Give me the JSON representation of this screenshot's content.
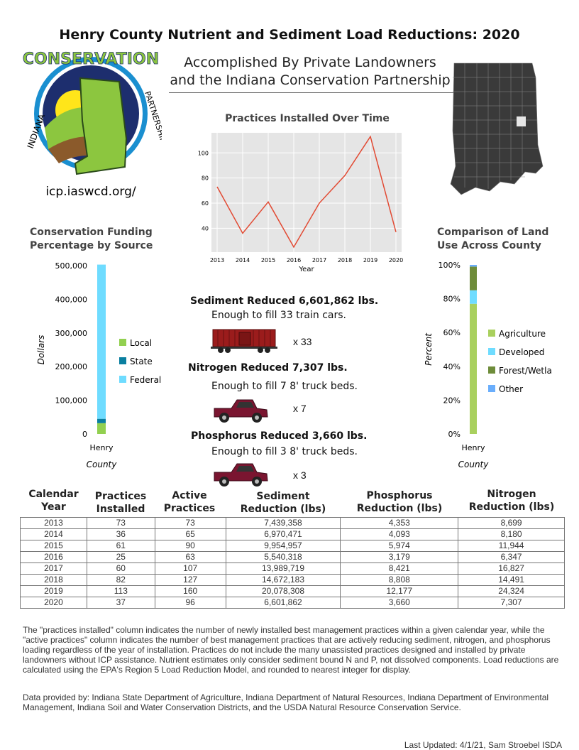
{
  "title": "Henry County Nutrient and Sediment Load Reductions: 2020",
  "subtitle_line1": "Accomplished By Private Landowners",
  "subtitle_line2": "and the Indiana Conservation Partnership",
  "logo": {
    "text_top": "CONSERVATION",
    "text_left": "INDIANA",
    "text_right": "PARTNERSHIP",
    "url": "icp.iaswcd.org/"
  },
  "map": {
    "highlighted_county": "Henry",
    "fill": "#3a3a3a",
    "highlight": "#e6e6e6"
  },
  "chart_data": [
    {
      "type": "line",
      "title": "Practices Installed Over Time",
      "xlabel": "Year",
      "ylabel": "",
      "x": [
        2013,
        2014,
        2015,
        2016,
        2017,
        2018,
        2019,
        2020
      ],
      "values": [
        73,
        36,
        61,
        25,
        60,
        82,
        113,
        37
      ],
      "yticks": [
        40,
        60,
        80,
        100
      ],
      "ylim": [
        21,
        116
      ],
      "grid": true,
      "color": "#e24a33",
      "background": "#e5e5e5"
    },
    {
      "type": "bar",
      "stacked": true,
      "title": "Conservation Funding Percentage by Source",
      "xlabel": "County",
      "ylabel": "Dollars",
      "categories": [
        "Henry"
      ],
      "yticks": [
        "0",
        "100,000",
        "200,000",
        "300,000",
        "400,000",
        "500,000"
      ],
      "ylim": [
        0,
        500000
      ],
      "legend": "right",
      "series": [
        {
          "name": "Local",
          "values": [
            32000
          ],
          "color": "#92d050"
        },
        {
          "name": "State",
          "values": [
            13000
          ],
          "color": "#0a7fa0"
        },
        {
          "name": "Federal",
          "values": [
            458000
          ],
          "color": "#6fdcff"
        }
      ]
    },
    {
      "type": "bar",
      "stacked": true,
      "title": "Comparison of Land Use Across County",
      "xlabel": "County",
      "ylabel": "Percent",
      "categories": [
        "Henry"
      ],
      "yticks": [
        "0%",
        "20%",
        "40%",
        "60%",
        "80%",
        "100%"
      ],
      "ylim": [
        0,
        100
      ],
      "legend": "right",
      "series": [
        {
          "name": "Agriculture",
          "values": [
            77
          ],
          "color": "#a9d05e"
        },
        {
          "name": "Developed",
          "values": [
            8
          ],
          "color": "#6fdcff"
        },
        {
          "name": "Forest/Wetla",
          "values": [
            14
          ],
          "color": "#6e8c3a"
        },
        {
          "name": "Other",
          "values": [
            1
          ],
          "color": "#6aaefc"
        }
      ]
    }
  ],
  "reductions": [
    {
      "heading": "Sediment Reduced 6,601,862 lbs.",
      "enough": "Enough to fill 33 train cars.",
      "multiplier": "x 33",
      "icon": "train-car-icon"
    },
    {
      "heading": "Nitrogen Reduced 7,307  lbs.",
      "enough": "Enough to fill 7 8' truck beds.",
      "multiplier": "x 7",
      "icon": "pickup-truck-icon"
    },
    {
      "heading": "Phosphorus Reduced 3,660  lbs.",
      "enough": "Enough to fill 3  8' truck beds.",
      "multiplier": "x 3",
      "icon": "pickup-truck-icon"
    }
  ],
  "table": {
    "headers": [
      [
        "Calendar",
        "Year"
      ],
      [
        "Practices",
        "Installed"
      ],
      [
        "Active",
        "Practices"
      ],
      [
        "Sediment",
        "Reduction (lbs)"
      ],
      [
        "Phosphorus",
        "Reduction (lbs)"
      ],
      [
        "Nitrogen",
        "Reduction (lbs)"
      ]
    ],
    "rows": [
      [
        "2013",
        "73",
        "73",
        "7,439,358",
        "4,353",
        "8,699"
      ],
      [
        "2014",
        "36",
        "65",
        "6,970,471",
        "4,093",
        "8,180"
      ],
      [
        "2015",
        "61",
        "90",
        "9,954,957",
        "5,974",
        "11,944"
      ],
      [
        "2016",
        "25",
        "63",
        "5,540,318",
        "3,179",
        "6,347"
      ],
      [
        "2017",
        "60",
        "107",
        "13,989,719",
        "8,421",
        "16,827"
      ],
      [
        "2018",
        "82",
        "127",
        "14,672,183",
        "8,808",
        "14,491"
      ],
      [
        "2019",
        "113",
        "160",
        "20,078,308",
        "12,177",
        "24,324"
      ],
      [
        "2020",
        "37",
        "96",
        "6,601,862",
        "3,660",
        "7,307"
      ]
    ]
  },
  "note": "The \"practices installed\" column indicates the number of newly installed best management practices within a given calendar year, while the \"active practices\" column indicates the number of best management practices that are actively reducing sediment, nitrogen, and phosphorus loading regardless of the year of installation.  Practices do not include the many unassisted practices designed and installed by private landowners without ICP assistance. Nutrient estimates only consider sediment bound N and P, not dissolved components. Load reductions are calculated using the EPA's Region 5 Load Reduction Model, and rounded to nearest integer for display.",
  "source": "Data provided by: Indiana State Department of Agriculture, Indiana Department of Natural Resources, Indiana Department of Environmental Management, Indiana Soil and Water Conservation Districts, and the USDA Natural Resource Conservation Service.",
  "updated": "Last Updated: 4/1/21, Sam Stroebel ISDA"
}
